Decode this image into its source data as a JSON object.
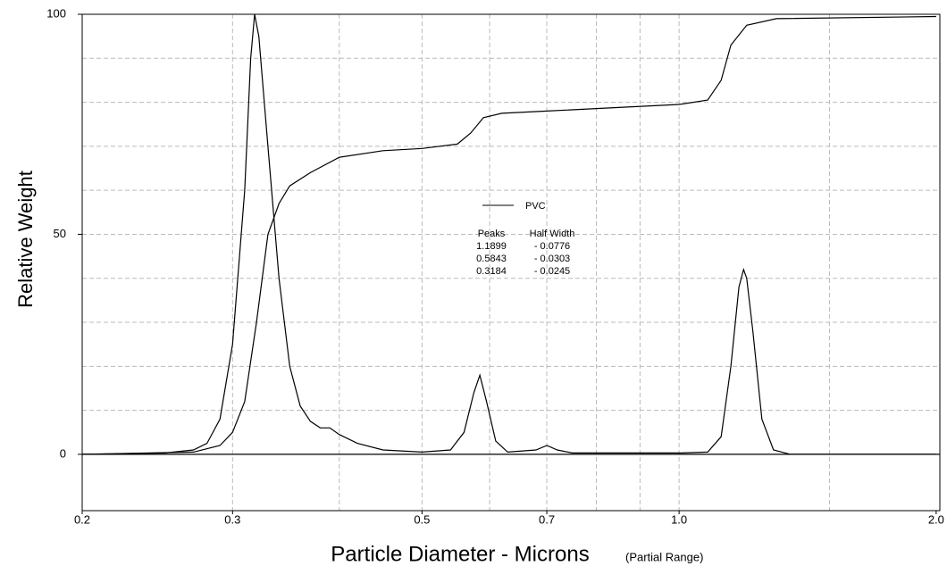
{
  "chart_data": {
    "type": "line",
    "ylabel": "Relative Weight",
    "xlabel": "Particle Diameter  -  Microns",
    "xlabel_note": "(Partial Range)",
    "xscale": "log",
    "xlim": [
      0.2,
      2.02
    ],
    "ylim": [
      -12.8,
      100
    ],
    "xticks": [
      0.2,
      0.3,
      0.5,
      0.7,
      {
        "value": 1,
        "label": "1.0"
      },
      {
        "value": 2,
        "label": "2.0"
      }
    ],
    "xgrid": [
      0.3,
      0.4,
      0.5,
      0.6,
      0.7,
      0.8,
      0.9,
      1,
      1.5
    ],
    "yticks": [
      0,
      50,
      100
    ],
    "ygrid": [
      10,
      20,
      30,
      40,
      50,
      60,
      70,
      80,
      90
    ],
    "grid": true,
    "series": [
      {
        "name": "PVC",
        "color": "#000000",
        "x": [
          0.2,
          0.25,
          0.27,
          0.28,
          0.29,
          0.3,
          0.31,
          0.315,
          0.3184,
          0.322,
          0.33,
          0.34,
          0.35,
          0.36,
          0.37,
          0.38,
          0.39,
          0.4,
          0.42,
          0.45,
          0.5,
          0.54,
          0.56,
          0.575,
          0.5843,
          0.595,
          0.61,
          0.63,
          0.68,
          0.7,
          0.72,
          0.75,
          1.0,
          1.08,
          1.12,
          1.15,
          1.175,
          1.1899,
          1.2,
          1.22,
          1.25,
          1.29,
          1.35,
          2.0
        ],
        "values": [
          0,
          0.3,
          1,
          2.5,
          8,
          25,
          60,
          90,
          100,
          95,
          70,
          40,
          20,
          11,
          7.5,
          6,
          6,
          4.5,
          2.5,
          1,
          0.5,
          1,
          5,
          14,
          18,
          12,
          3,
          0.5,
          1,
          2,
          1,
          0.3,
          0.3,
          0.5,
          4,
          20,
          38,
          42,
          40,
          28,
          8,
          1,
          0,
          0
        ]
      },
      {
        "color": "#000000",
        "x": [
          0.2,
          0.27,
          0.29,
          0.3,
          0.31,
          0.32,
          0.33,
          0.34,
          0.35,
          0.37,
          0.4,
          0.45,
          0.5,
          0.55,
          0.57,
          0.59,
          0.62,
          0.7,
          1.0,
          1.08,
          1.12,
          1.15,
          1.2,
          1.3,
          2.0
        ],
        "values": [
          0,
          0.5,
          2,
          5,
          12,
          30,
          50,
          57,
          61,
          64,
          67.5,
          69,
          69.5,
          70.5,
          73,
          76.5,
          77.5,
          78,
          79.5,
          80.5,
          85,
          93,
          97.5,
          99,
          99.5
        ]
      }
    ],
    "peaks_table": {
      "headers": [
        "Peaks",
        "Half Width"
      ],
      "rows": [
        [
          "1.1899",
          "- 0.0776"
        ],
        [
          "0.5843",
          "- 0.0303"
        ],
        [
          "0.3184",
          "- 0.0245"
        ]
      ]
    }
  }
}
